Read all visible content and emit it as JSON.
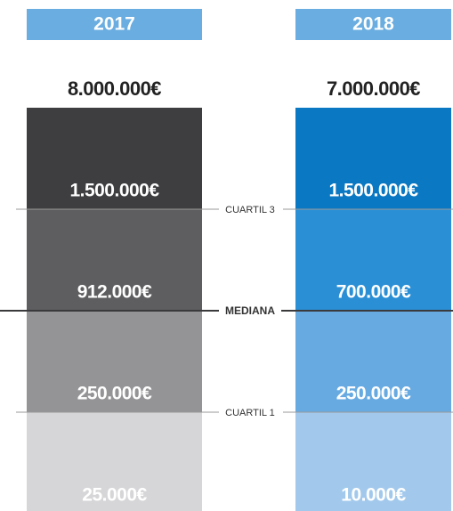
{
  "columns": [
    {
      "year": "2017",
      "top": "8.000.000€",
      "segments": [
        "1.500.000€",
        "912.000€",
        "250.000€",
        "25.000€"
      ],
      "colors": [
        "#3e3e40",
        "#5e5e60",
        "#949497",
        "#d6d6d8"
      ]
    },
    {
      "year": "2018",
      "top": "7.000.000€",
      "segments": [
        "1.500.000€",
        "700.000€",
        "250.000€",
        "10.000€"
      ],
      "colors": [
        "#0a78c2",
        "#2a8fd5",
        "#66aae1",
        "#a2c9ec"
      ]
    }
  ],
  "markers": [
    "CUARTIL 3",
    "MEDIANA",
    "CUARTIL 1"
  ]
}
